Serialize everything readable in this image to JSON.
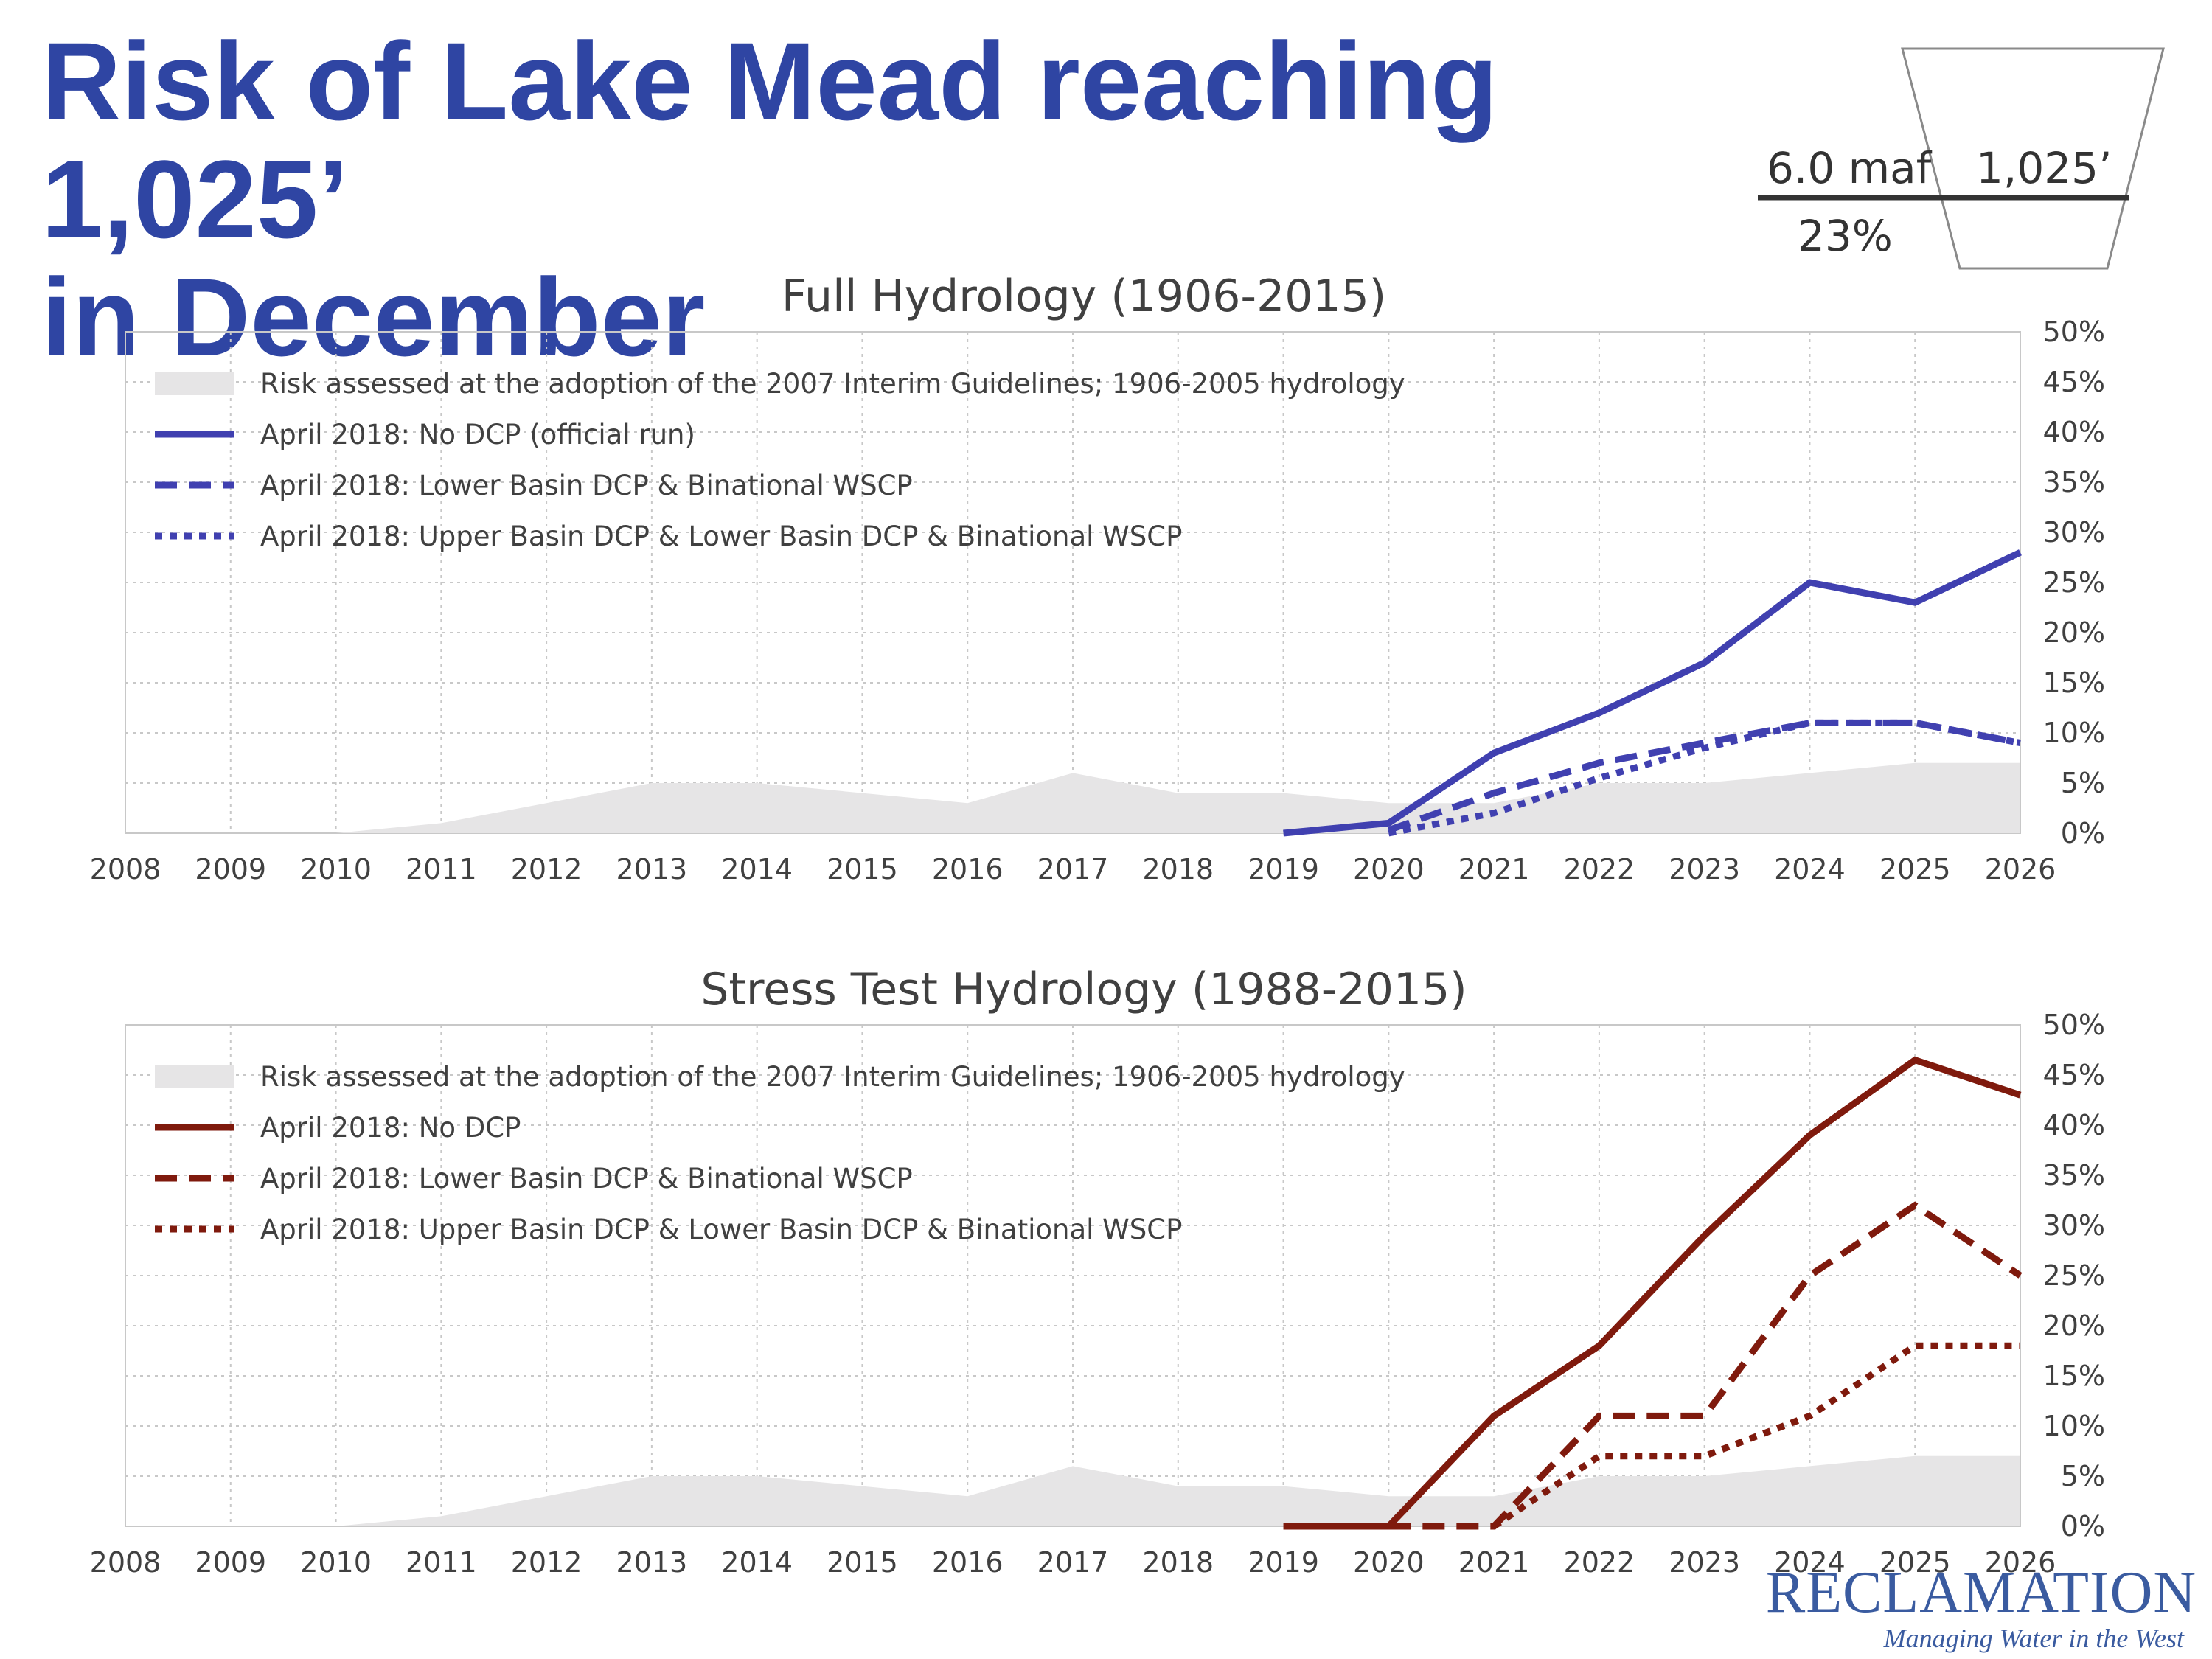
{
  "title_lines": [
    "Risk of Lake Mead reaching 1,025’",
    "in December"
  ],
  "pool": {
    "volume": "6.0 maf",
    "elevation": "1,025’",
    "percent": "23%"
  },
  "colors": {
    "title": "#2f45a3",
    "blue": "#4040b0",
    "red": "#7f1a0d",
    "baseline": "#e6e5e6",
    "grid": "#c8c8c8"
  },
  "logo": {
    "name": "RECLAMATION",
    "tagline": "Managing Water in the West"
  },
  "chart_data": [
    {
      "type": "line",
      "title": "Full Hydrology (1906-2015)",
      "x": [
        2008,
        2009,
        2010,
        2011,
        2012,
        2013,
        2014,
        2015,
        2016,
        2017,
        2018,
        2019,
        2020,
        2021,
        2022,
        2023,
        2024,
        2025,
        2026
      ],
      "ylim": [
        0,
        50
      ],
      "yticks": [
        "0%",
        "5%",
        "10%",
        "15%",
        "20%",
        "25%",
        "30%",
        "35%",
        "40%",
        "45%",
        "50%"
      ],
      "grid": true,
      "legend_position": "top-left",
      "series": [
        {
          "name": "Risk assessed at the adoption of the 2007 Interim Guidelines; 1906-2005 hydrology",
          "style": "area",
          "color": "#e6e5e6",
          "values": [
            0,
            0,
            0,
            1,
            3,
            5,
            5,
            4,
            3,
            6,
            4,
            4,
            3,
            3,
            5,
            5,
            6,
            7,
            7
          ]
        },
        {
          "name": "April 2018: No DCP (official run)",
          "style": "solid",
          "color": "#4040b0",
          "values": [
            null,
            null,
            null,
            null,
            null,
            null,
            null,
            null,
            null,
            null,
            null,
            0,
            1,
            8,
            12,
            17,
            25,
            23,
            28
          ]
        },
        {
          "name": "April 2018: Lower Basin DCP & Binational WSCP",
          "style": "dashed",
          "color": "#4040b0",
          "values": [
            null,
            null,
            null,
            null,
            null,
            null,
            null,
            null,
            null,
            null,
            null,
            null,
            0.3,
            4,
            7,
            9,
            11,
            11,
            9
          ]
        },
        {
          "name": "April 2018: Upper Basin DCP & Lower Basin DCP & Binational WSCP",
          "style": "dotted",
          "color": "#4040b0",
          "values": [
            null,
            null,
            null,
            null,
            null,
            null,
            null,
            null,
            null,
            null,
            null,
            null,
            0,
            2,
            5.5,
            8.5,
            11,
            11,
            9
          ]
        }
      ]
    },
    {
      "type": "line",
      "title": "Stress Test Hydrology (1988-2015)",
      "x": [
        2008,
        2009,
        2010,
        2011,
        2012,
        2013,
        2014,
        2015,
        2016,
        2017,
        2018,
        2019,
        2020,
        2021,
        2022,
        2023,
        2024,
        2025,
        2026
      ],
      "ylim": [
        0,
        50
      ],
      "yticks": [
        "0%",
        "5%",
        "10%",
        "15%",
        "20%",
        "25%",
        "30%",
        "35%",
        "40%",
        "45%",
        "50%"
      ],
      "grid": true,
      "legend_position": "top-left",
      "series": [
        {
          "name": "Risk assessed at the adoption of the 2007 Interim Guidelines; 1906-2005 hydrology",
          "style": "area",
          "color": "#e6e5e6",
          "values": [
            0,
            0,
            0,
            1,
            3,
            5,
            5,
            4,
            3,
            6,
            4,
            4,
            3,
            3,
            5,
            5,
            6,
            7,
            7
          ]
        },
        {
          "name": "April 2018: No DCP",
          "style": "solid",
          "color": "#7f1a0d",
          "values": [
            null,
            null,
            null,
            null,
            null,
            null,
            null,
            null,
            null,
            null,
            null,
            0,
            0,
            11,
            18,
            29,
            39,
            46.5,
            43
          ]
        },
        {
          "name": "April 2018: Lower Basin DCP & Binational WSCP",
          "style": "dashed",
          "color": "#7f1a0d",
          "values": [
            null,
            null,
            null,
            null,
            null,
            null,
            null,
            null,
            null,
            null,
            null,
            null,
            0,
            0,
            11,
            11,
            25,
            32,
            25
          ]
        },
        {
          "name": "April 2018: Upper Basin DCP & Lower Basin DCP & Binational WSCP",
          "style": "dotted",
          "color": "#7f1a0d",
          "values": [
            null,
            null,
            null,
            null,
            null,
            null,
            null,
            null,
            null,
            null,
            null,
            null,
            null,
            0,
            7,
            7,
            11,
            18,
            18
          ]
        }
      ]
    }
  ]
}
